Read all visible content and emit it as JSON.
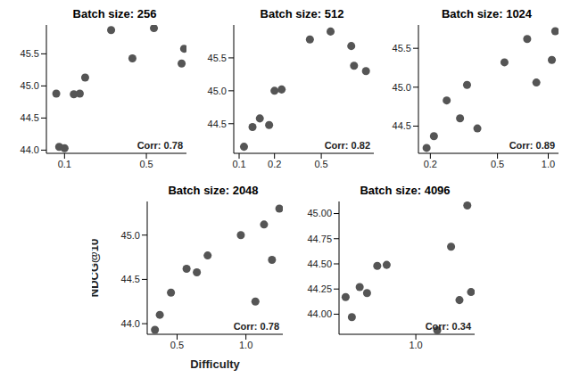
{
  "chart_data": [
    {
      "type": "scatter",
      "title": "Batch size: 256",
      "log": "x",
      "color": "#555555",
      "marker": "circle",
      "x": [
        0.085,
        0.09,
        0.1,
        0.12,
        0.135,
        0.15,
        0.25,
        0.38,
        0.58,
        1.0,
        1.05
      ],
      "y": [
        44.88,
        44.05,
        44.03,
        44.87,
        44.88,
        45.13,
        45.87,
        45.43,
        45.9,
        45.35,
        45.58
      ],
      "xlim": [
        0.07,
        1.1
      ],
      "xticks": [
        0.1,
        0.5
      ],
      "ylim": [
        43.95,
        45.95
      ],
      "yticks": [
        {
          "value": 44,
          "label": "44.0"
        },
        44.5,
        {
          "value": 45,
          "label": "45.0"
        },
        45.5
      ],
      "annotations": [
        "Corr: 0.78"
      ]
    },
    {
      "type": "scatter",
      "title": "Batch size: 512",
      "log": "x",
      "color": "#555555",
      "marker": "circle",
      "x": [
        0.11,
        0.13,
        0.15,
        0.18,
        0.2,
        0.23,
        0.4,
        0.6,
        0.9,
        0.95,
        1.2
      ],
      "y": [
        44.15,
        44.45,
        44.58,
        44.48,
        45.0,
        45.02,
        45.78,
        45.9,
        45.68,
        45.38,
        45.3
      ],
      "xlim": [
        0.09,
        1.4
      ],
      "xticks": [
        0.1,
        0.2,
        0.5
      ],
      "ylim": [
        44.05,
        46.0
      ],
      "yticks": [
        44.5,
        {
          "value": 45,
          "label": "45.0"
        },
        45.5
      ],
      "annotations": [
        "Corr: 0.82"
      ]
    },
    {
      "type": "scatter",
      "title": "Batch size: 1024",
      "log": "x",
      "color": "#555555",
      "marker": "circle",
      "x": [
        0.19,
        0.21,
        0.25,
        0.3,
        0.33,
        0.38,
        0.55,
        0.75,
        0.85,
        1.05,
        1.1
      ],
      "y": [
        44.22,
        44.37,
        44.83,
        44.6,
        45.03,
        44.47,
        45.32,
        45.62,
        45.06,
        45.35,
        45.72
      ],
      "xlim": [
        0.17,
        1.15
      ],
      "xticks": [
        0.2,
        0.5,
        {
          "value": 1,
          "label": "1.0"
        }
      ],
      "ylim": [
        44.15,
        45.8
      ],
      "yticks": [
        44.5,
        {
          "value": 45,
          "label": "45.0"
        },
        45.5
      ],
      "annotations": [
        "Corr: 0.89"
      ]
    },
    {
      "type": "scatter",
      "title": "Batch size: 2048",
      "log": "x",
      "color": "#555555",
      "marker": "circle",
      "x_label": "Difficulty",
      "y_label": "NDCG@10",
      "x": [
        0.4,
        0.42,
        0.47,
        0.55,
        0.61,
        0.68,
        0.95,
        1.1,
        1.2,
        1.3,
        1.4
      ],
      "y": [
        43.93,
        44.1,
        44.35,
        44.62,
        44.58,
        44.77,
        45.0,
        44.25,
        45.12,
        44.72,
        45.3
      ],
      "xlim": [
        0.37,
        1.45
      ],
      "xticks": [
        0.5,
        {
          "value": 1,
          "label": "1.0"
        }
      ],
      "ylim": [
        43.88,
        45.38
      ],
      "yticks": [
        {
          "value": 44,
          "label": "44.0"
        },
        44.5,
        {
          "value": 45,
          "label": "45.0"
        }
      ],
      "annotations": [
        "Corr: 0.78"
      ]
    },
    {
      "type": "scatter",
      "title": "Batch size: 4096",
      "log": "x",
      "color": "#555555",
      "marker": "circle",
      "x": [
        0.55,
        0.58,
        0.62,
        0.66,
        0.72,
        0.78,
        1.2,
        1.35,
        1.45,
        1.55,
        1.6
      ],
      "y": [
        44.17,
        43.97,
        44.27,
        44.21,
        44.48,
        44.49,
        43.84,
        44.67,
        44.14,
        45.08,
        44.22
      ],
      "xlim": [
        0.52,
        1.65
      ],
      "xticks": [
        {
          "value": 1,
          "label": "1.0"
        }
      ],
      "ylim": [
        43.8,
        45.12
      ],
      "yticks": [
        {
          "value": 44,
          "label": "44.00"
        },
        44.25,
        {
          "value": 44.5,
          "label": "44.50"
        },
        44.75,
        {
          "value": 45,
          "label": "45.00"
        }
      ],
      "annotations": [
        "Corr: 0.34"
      ]
    }
  ]
}
